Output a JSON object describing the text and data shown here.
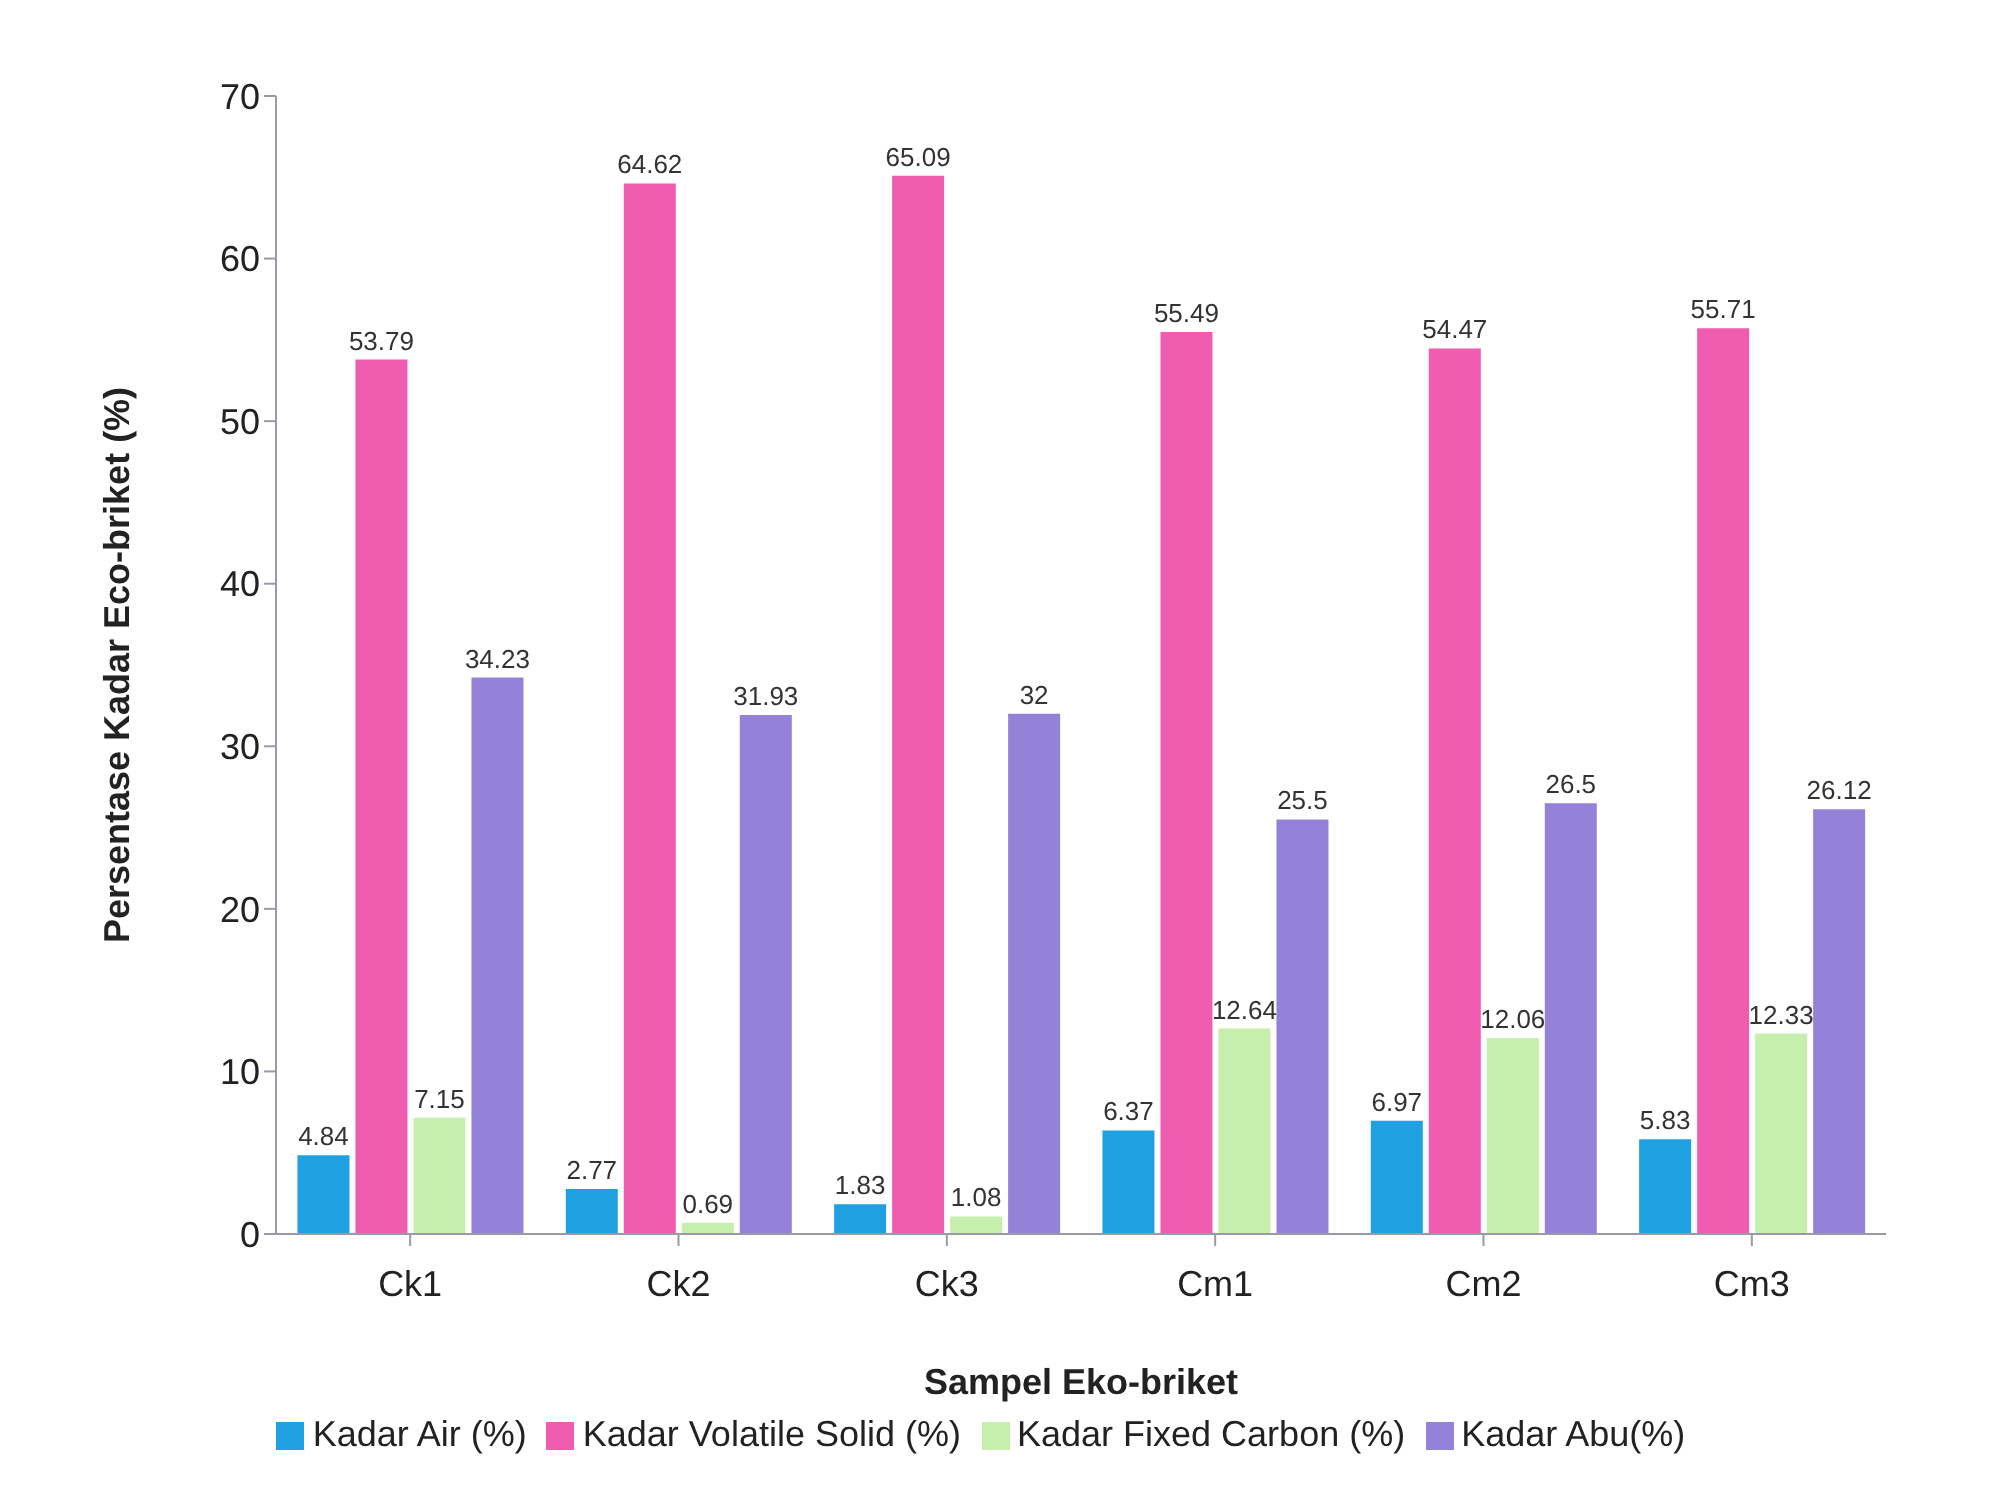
{
  "chart_data": {
    "type": "bar",
    "xlabel": "Sampel Eko-briket",
    "ylabel": "Persentase Kadar Eco-briket (%)",
    "categories": [
      "Ck1",
      "Ck2",
      "Ck3",
      "Cm1",
      "Cm2",
      "Cm3"
    ],
    "series": [
      {
        "name": "Kadar Air (%)",
        "color": "#1fa0e0",
        "values": [
          4.84,
          2.77,
          1.83,
          6.37,
          6.97,
          5.83
        ]
      },
      {
        "name": "Kadar Volatile Solid (%)",
        "color": "#f05cb0",
        "values": [
          53.79,
          64.62,
          65.09,
          55.49,
          54.47,
          55.71
        ]
      },
      {
        "name": "Kadar Fixed Carbon (%)",
        "color": "#c6efae",
        "values": [
          7.15,
          0.69,
          1.08,
          12.64,
          12.06,
          12.33
        ]
      },
      {
        "name": "Kadar Abu(%)",
        "color": "#9482d8",
        "values": [
          34.23,
          31.93,
          32,
          25.5,
          26.5,
          26.12
        ]
      }
    ],
    "ylim": [
      0,
      70
    ],
    "yticks": [
      0,
      10,
      20,
      30,
      40,
      50,
      60,
      70
    ],
    "data_labels": true,
    "legend": "bottom"
  }
}
